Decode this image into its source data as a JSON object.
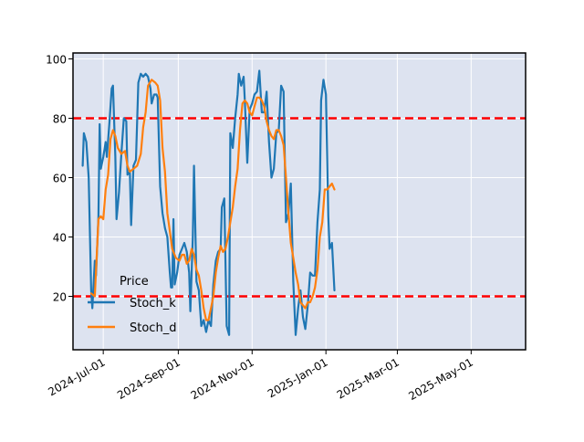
{
  "chart_data": {
    "type": "line",
    "title": "",
    "xlabel": "",
    "ylabel": "",
    "x_tick_labels": [
      "2024-Jul-01",
      "2024-Sep-01",
      "2024-Nov-01",
      "2025-Jan-01",
      "2025-Mar-01",
      "2025-May-01"
    ],
    "x_ticks": [
      "2024-07-01",
      "2024-09-01",
      "2024-11-01",
      "2025-01-01",
      "2025-03-01",
      "2025-05-01"
    ],
    "y_ticks": [
      20,
      40,
      60,
      80,
      100
    ],
    "xlim": [
      "2024-06-06",
      "2025-06-15"
    ],
    "ylim": [
      2,
      102
    ],
    "grid": true,
    "background_color": "#dde3f0",
    "reference_lines": [
      {
        "y": 80,
        "color": "#ff0000",
        "style": "dashed"
      },
      {
        "y": 20,
        "color": "#ff0000",
        "style": "dashed"
      }
    ],
    "legend": {
      "title": "Price",
      "position": "lower-left"
    },
    "series": [
      {
        "name": "Stoch_k",
        "color": "#1f77b4",
        "points": [
          [
            "2024-06-14",
            64
          ],
          [
            "2024-06-15",
            75
          ],
          [
            "2024-06-17",
            72
          ],
          [
            "2024-06-19",
            60
          ],
          [
            "2024-06-21",
            22
          ],
          [
            "2024-06-22",
            16
          ],
          [
            "2024-06-24",
            32
          ],
          [
            "2024-06-25",
            27
          ],
          [
            "2024-06-27",
            47
          ],
          [
            "2024-06-28",
            78
          ],
          [
            "2024-06-29",
            63
          ],
          [
            "2024-07-01",
            67
          ],
          [
            "2024-07-03",
            72
          ],
          [
            "2024-07-04",
            67
          ],
          [
            "2024-07-06",
            78
          ],
          [
            "2024-07-08",
            90
          ],
          [
            "2024-07-09",
            91
          ],
          [
            "2024-07-11",
            67
          ],
          [
            "2024-07-12",
            46
          ],
          [
            "2024-07-14",
            55
          ],
          [
            "2024-07-16",
            68
          ],
          [
            "2024-07-18",
            80
          ],
          [
            "2024-07-20",
            79
          ],
          [
            "2024-07-21",
            61
          ],
          [
            "2024-07-23",
            62
          ],
          [
            "2024-07-24",
            44
          ],
          [
            "2024-07-26",
            64
          ],
          [
            "2024-07-28",
            66
          ],
          [
            "2024-07-30",
            92
          ],
          [
            "2024-08-01",
            95
          ],
          [
            "2024-08-03",
            94
          ],
          [
            "2024-08-05",
            95
          ],
          [
            "2024-08-07",
            94
          ],
          [
            "2024-08-09",
            90
          ],
          [
            "2024-08-10",
            85
          ],
          [
            "2024-08-12",
            88
          ],
          [
            "2024-08-14",
            88
          ],
          [
            "2024-08-15",
            87
          ],
          [
            "2024-08-17",
            57
          ],
          [
            "2024-08-19",
            48
          ],
          [
            "2024-08-21",
            43
          ],
          [
            "2024-08-23",
            40
          ],
          [
            "2024-08-25",
            28
          ],
          [
            "2024-08-26",
            23
          ],
          [
            "2024-08-27",
            23
          ],
          [
            "2024-08-28",
            46
          ],
          [
            "2024-08-29",
            24
          ],
          [
            "2024-08-31",
            28
          ],
          [
            "2024-09-02",
            34
          ],
          [
            "2024-09-04",
            36
          ],
          [
            "2024-09-06",
            38
          ],
          [
            "2024-09-08",
            35
          ],
          [
            "2024-09-10",
            28
          ],
          [
            "2024-09-11",
            15
          ],
          [
            "2024-09-13",
            40
          ],
          [
            "2024-09-14",
            64
          ],
          [
            "2024-09-16",
            25
          ],
          [
            "2024-09-18",
            22
          ],
          [
            "2024-09-20",
            10
          ],
          [
            "2024-09-22",
            12
          ],
          [
            "2024-09-24",
            8
          ],
          [
            "2024-09-26",
            12
          ],
          [
            "2024-09-28",
            10
          ],
          [
            "2024-09-30",
            24
          ],
          [
            "2024-10-02",
            32
          ],
          [
            "2024-10-04",
            35
          ],
          [
            "2024-10-06",
            36
          ],
          [
            "2024-10-07",
            50
          ],
          [
            "2024-10-09",
            53
          ],
          [
            "2024-10-11",
            10
          ],
          [
            "2024-10-13",
            7
          ],
          [
            "2024-10-14",
            75
          ],
          [
            "2024-10-16",
            70
          ],
          [
            "2024-10-18",
            80
          ],
          [
            "2024-10-20",
            88
          ],
          [
            "2024-10-21",
            95
          ],
          [
            "2024-10-23",
            91
          ],
          [
            "2024-10-25",
            94
          ],
          [
            "2024-10-26",
            86
          ],
          [
            "2024-10-28",
            65
          ],
          [
            "2024-10-30",
            83
          ],
          [
            "2024-11-01",
            85
          ],
          [
            "2024-11-03",
            88
          ],
          [
            "2024-11-05",
            89
          ],
          [
            "2024-11-07",
            96
          ],
          [
            "2024-11-09",
            82
          ],
          [
            "2024-11-11",
            82
          ],
          [
            "2024-11-13",
            89
          ],
          [
            "2024-11-15",
            72
          ],
          [
            "2024-11-17",
            60
          ],
          [
            "2024-11-19",
            63
          ],
          [
            "2024-11-21",
            75
          ],
          [
            "2024-11-23",
            76
          ],
          [
            "2024-11-25",
            91
          ],
          [
            "2024-11-27",
            89
          ],
          [
            "2024-11-29",
            45
          ],
          [
            "2024-12-01",
            48
          ],
          [
            "2024-12-03",
            58
          ],
          [
            "2024-12-05",
            25
          ],
          [
            "2024-12-07",
            7
          ],
          [
            "2024-12-09",
            16
          ],
          [
            "2024-12-11",
            22
          ],
          [
            "2024-12-13",
            13
          ],
          [
            "2024-12-15",
            9
          ],
          [
            "2024-12-17",
            17
          ],
          [
            "2024-12-19",
            28
          ],
          [
            "2024-12-21",
            27
          ],
          [
            "2024-12-23",
            27
          ],
          [
            "2024-12-25",
            45
          ],
          [
            "2024-12-27",
            56
          ],
          [
            "2024-12-28",
            86
          ],
          [
            "2024-12-30",
            93
          ],
          [
            "2025-01-01",
            88
          ],
          [
            "2025-01-03",
            47
          ],
          [
            "2025-01-04",
            36
          ],
          [
            "2025-01-06",
            38
          ],
          [
            "2025-01-08",
            22
          ]
        ]
      },
      {
        "name": "Stoch_d",
        "color": "#ff7f0e",
        "points": [
          [
            "2024-06-21",
            21
          ],
          [
            "2024-06-24",
            20
          ],
          [
            "2024-06-27",
            46
          ],
          [
            "2024-06-29",
            47
          ],
          [
            "2024-07-01",
            46
          ],
          [
            "2024-07-03",
            56
          ],
          [
            "2024-07-05",
            61
          ],
          [
            "2024-07-07",
            73
          ],
          [
            "2024-07-09",
            76
          ],
          [
            "2024-07-11",
            74
          ],
          [
            "2024-07-13",
            70
          ],
          [
            "2024-07-16",
            68
          ],
          [
            "2024-07-19",
            69
          ],
          [
            "2024-07-21",
            64
          ],
          [
            "2024-07-23",
            62
          ],
          [
            "2024-07-26",
            63
          ],
          [
            "2024-07-29",
            64
          ],
          [
            "2024-08-01",
            68
          ],
          [
            "2024-08-03",
            77
          ],
          [
            "2024-08-05",
            82
          ],
          [
            "2024-08-07",
            91
          ],
          [
            "2024-08-10",
            93
          ],
          [
            "2024-08-13",
            92
          ],
          [
            "2024-08-15",
            91
          ],
          [
            "2024-08-17",
            86
          ],
          [
            "2024-08-19",
            70
          ],
          [
            "2024-08-21",
            62
          ],
          [
            "2024-08-23",
            48
          ],
          [
            "2024-08-25",
            42
          ],
          [
            "2024-08-27",
            36
          ],
          [
            "2024-08-30",
            33
          ],
          [
            "2024-09-02",
            32
          ],
          [
            "2024-09-04",
            34
          ],
          [
            "2024-09-06",
            34
          ],
          [
            "2024-09-08",
            31
          ],
          [
            "2024-09-10",
            32
          ],
          [
            "2024-09-12",
            36
          ],
          [
            "2024-09-14",
            34
          ],
          [
            "2024-09-16",
            29
          ],
          [
            "2024-09-18",
            27
          ],
          [
            "2024-09-20",
            22
          ],
          [
            "2024-09-22",
            16
          ],
          [
            "2024-09-24",
            12
          ],
          [
            "2024-09-26",
            12
          ],
          [
            "2024-09-28",
            16
          ],
          [
            "2024-09-30",
            20
          ],
          [
            "2024-10-02",
            28
          ],
          [
            "2024-10-04",
            33
          ],
          [
            "2024-10-06",
            37
          ],
          [
            "2024-10-08",
            35
          ],
          [
            "2024-10-10",
            36
          ],
          [
            "2024-10-12",
            40
          ],
          [
            "2024-10-14",
            45
          ],
          [
            "2024-10-16",
            50
          ],
          [
            "2024-10-18",
            57
          ],
          [
            "2024-10-20",
            63
          ],
          [
            "2024-10-22",
            76
          ],
          [
            "2024-10-24",
            85
          ],
          [
            "2024-10-26",
            86
          ],
          [
            "2024-10-28",
            85
          ],
          [
            "2024-10-30",
            82
          ],
          [
            "2024-11-01",
            81
          ],
          [
            "2024-11-03",
            84
          ],
          [
            "2024-11-05",
            87
          ],
          [
            "2024-11-07",
            87
          ],
          [
            "2024-11-09",
            86
          ],
          [
            "2024-11-11",
            84
          ],
          [
            "2024-11-13",
            79
          ],
          [
            "2024-11-15",
            76
          ],
          [
            "2024-11-17",
            74
          ],
          [
            "2024-11-19",
            73
          ],
          [
            "2024-11-21",
            76
          ],
          [
            "2024-11-23",
            76
          ],
          [
            "2024-11-25",
            74
          ],
          [
            "2024-11-27",
            71
          ],
          [
            "2024-11-29",
            60
          ],
          [
            "2024-12-01",
            48
          ],
          [
            "2024-12-03",
            38
          ],
          [
            "2024-12-05",
            33
          ],
          [
            "2024-12-07",
            28
          ],
          [
            "2024-12-09",
            24
          ],
          [
            "2024-12-11",
            18
          ],
          [
            "2024-12-13",
            17
          ],
          [
            "2024-12-15",
            16
          ],
          [
            "2024-12-17",
            18
          ],
          [
            "2024-12-19",
            18
          ],
          [
            "2024-12-21",
            20
          ],
          [
            "2024-12-23",
            23
          ],
          [
            "2024-12-25",
            29
          ],
          [
            "2024-12-27",
            40
          ],
          [
            "2024-12-29",
            45
          ],
          [
            "2024-12-31",
            56
          ],
          [
            "2025-01-02",
            56
          ],
          [
            "2025-01-04",
            57
          ],
          [
            "2025-01-06",
            58
          ],
          [
            "2025-01-08",
            56
          ]
        ]
      }
    ]
  }
}
